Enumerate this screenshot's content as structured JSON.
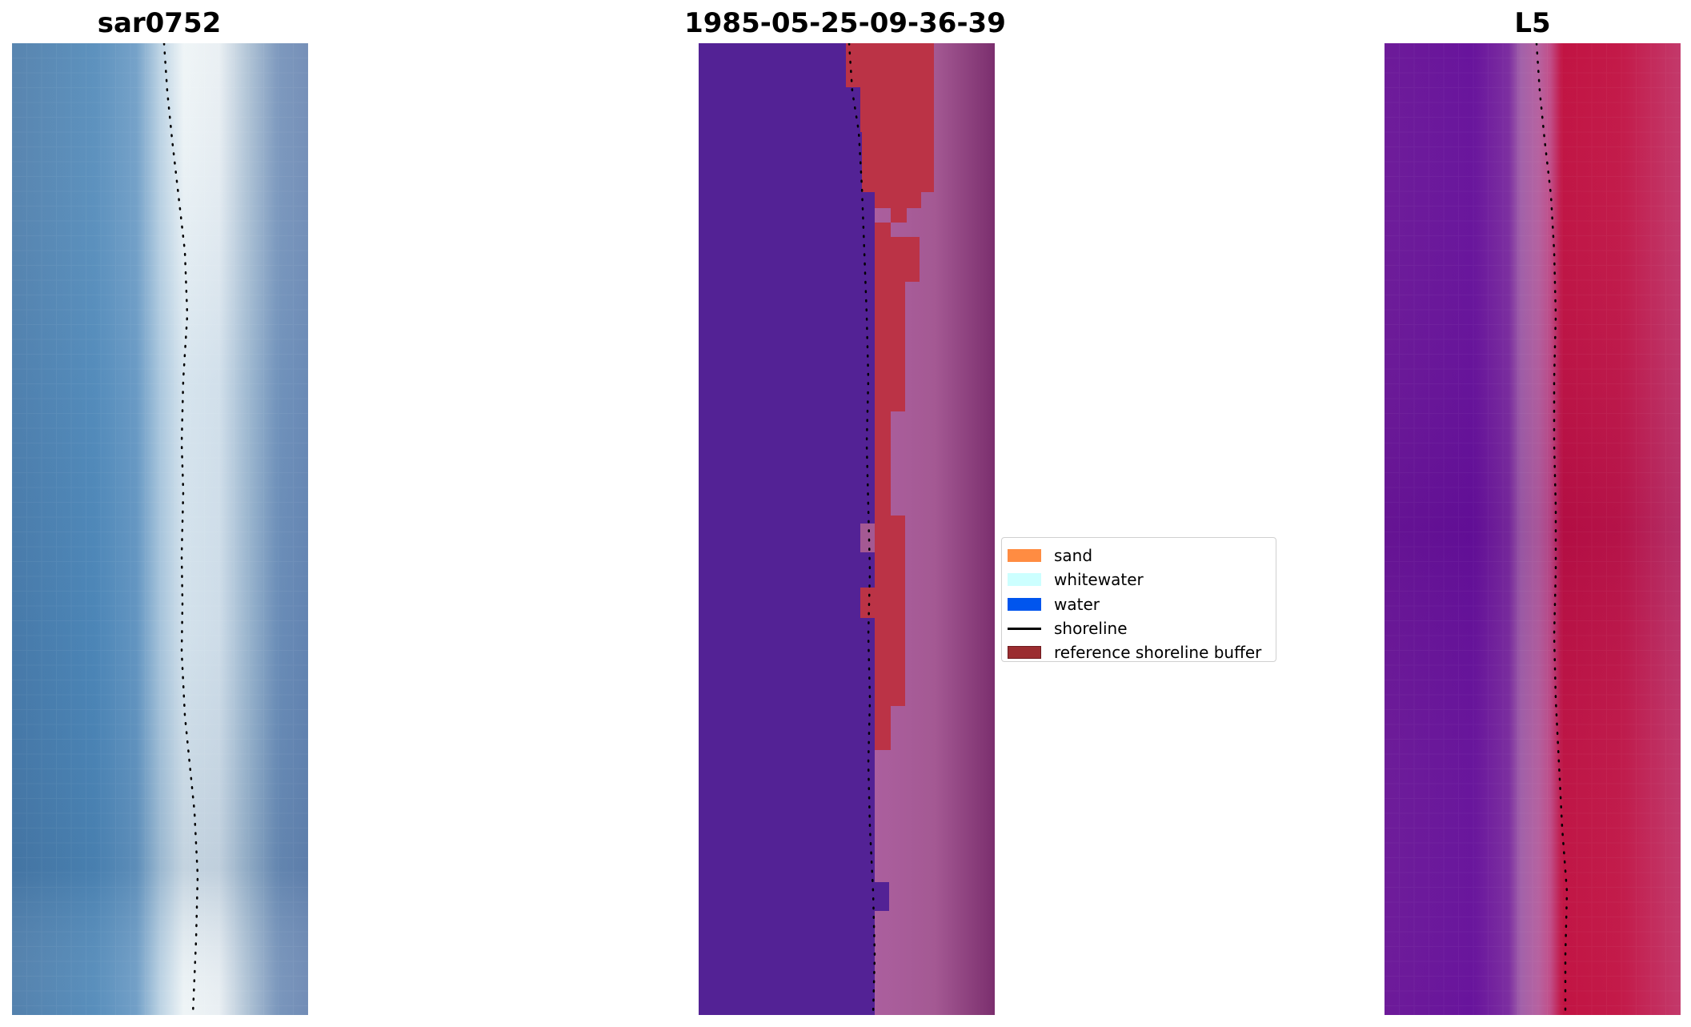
{
  "panels": {
    "rgb": {
      "title": "sar0752"
    },
    "classification": {
      "title": "1985-05-25-09-36-39"
    },
    "index": {
      "title": "L5"
    }
  },
  "legend": {
    "items": [
      {
        "label": "sand",
        "color": "#ff8c42",
        "kind": "patch"
      },
      {
        "label": "whitewater",
        "color": "#ccffff",
        "kind": "patch"
      },
      {
        "label": "water",
        "color": "#0055ee",
        "kind": "patch"
      },
      {
        "label": "shoreline",
        "color": "#000000",
        "kind": "line"
      },
      {
        "label": "reference shoreline buffer",
        "color": "#9b2d30",
        "kind": "patch"
      }
    ]
  }
}
